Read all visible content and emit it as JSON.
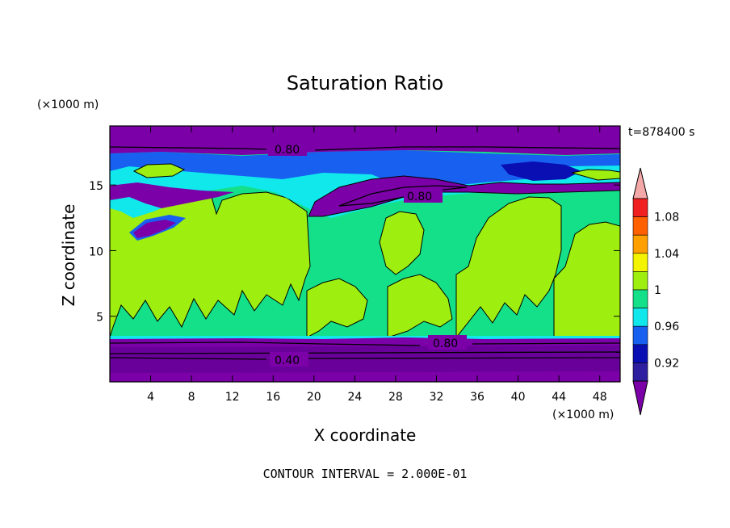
{
  "chart_data": {
    "type": "heatmap",
    "title": "Saturation Ratio",
    "xlabel": "X coordinate",
    "ylabel": "Z coordinate",
    "x_unit": "(×1000 m)",
    "y_unit": "(×1000 m)",
    "time_label": "t=878400 s",
    "footer": "CONTOUR INTERVAL = 2.000E-01",
    "xlim": [
      0,
      50
    ],
    "ylim": [
      0,
      19.5
    ],
    "x_ticks": [
      4,
      8,
      12,
      16,
      20,
      24,
      28,
      32,
      36,
      40,
      44,
      48
    ],
    "y_ticks": [
      5,
      10,
      15
    ],
    "levels": [
      {
        "range": "< 0.90",
        "color": "#7b00a8"
      },
      {
        "range": "0.90-0.92",
        "color": "#2e1fa0"
      },
      {
        "range": "0.92-0.94",
        "color": "#0a0fb4"
      },
      {
        "range": "0.94-0.96",
        "color": "#1860f0"
      },
      {
        "range": "0.96-0.98",
        "color": "#10e8ec"
      },
      {
        "range": "0.98-1.00",
        "color": "#14e08a"
      },
      {
        "range": "1.00-1.02",
        "color": "#9eee10"
      },
      {
        "range": "1.02-1.04",
        "color": "#f4f400"
      },
      {
        "range": "1.04-1.06",
        "color": "#ffa000"
      },
      {
        "range": "1.06-1.08",
        "color": "#ff6000"
      },
      {
        "range": "1.08-1.10",
        "color": "#f02020"
      },
      {
        "range": "> 1.10",
        "color": "#f4a8a8"
      }
    ],
    "colorbar_tick_labels": [
      {
        "label": "0.92"
      },
      {
        "label": "0.96"
      },
      {
        "label": "1"
      },
      {
        "label": "1.04"
      },
      {
        "label": "1.08"
      }
    ],
    "contour_labels": [
      {
        "text": "0.80"
      },
      {
        "text": "0.80"
      },
      {
        "text": "0.80"
      },
      {
        "text": "0.40"
      }
    ],
    "regions": [
      {
        "name": "upper-dry-layer",
        "x": [
          0,
          50
        ],
        "z": [
          16.8,
          19.5
        ],
        "level": "< 0.90"
      },
      {
        "name": "tropopause-moist-band",
        "x": [
          0,
          50
        ],
        "z": [
          15.4,
          16.8
        ],
        "level": "0.94-0.98"
      },
      {
        "name": "mid-dry-wedge",
        "x": [
          20,
          35
        ],
        "z": [
          13.5,
          15.5
        ],
        "level": "< 0.90"
      },
      {
        "name": "left-dry-tongue",
        "x": [
          2,
          8
        ],
        "z": [
          10.5,
          12.5
        ],
        "level": "< 0.90"
      },
      {
        "name": "mid-troposphere",
        "x": [
          0,
          50
        ],
        "z": [
          3.5,
          15.4
        ],
        "level": "0.98-1.00"
      },
      {
        "name": "cloud-columns",
        "x": [
          0,
          50
        ],
        "z": [
          3.5,
          13.5
        ],
        "level": "1.00-1.02"
      },
      {
        "name": "boundary-dry-layer",
        "x": [
          0,
          50
        ],
        "z": [
          0,
          3.4
        ],
        "level": "< 0.90"
      }
    ]
  }
}
